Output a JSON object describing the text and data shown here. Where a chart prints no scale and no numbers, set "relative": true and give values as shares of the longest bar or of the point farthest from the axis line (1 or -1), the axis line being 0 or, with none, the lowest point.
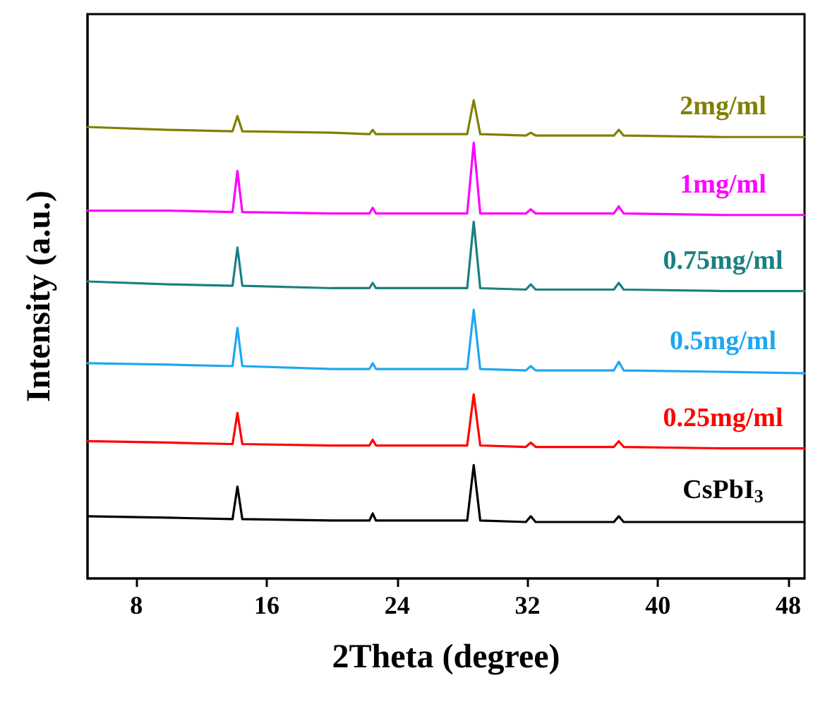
{
  "chart_data": {
    "type": "line",
    "relative": true,
    "xlabel": "2Theta (degree)",
    "ylabel": "Intensity (a.u.)",
    "xlim": [
      5,
      49
    ],
    "xticks": [
      8,
      16,
      24,
      32,
      40,
      48
    ],
    "grid": false,
    "legend": false,
    "marker": "none",
    "line_style": "solid",
    "x": [
      5,
      10,
      13.9,
      14.2,
      14.5,
      20,
      22.3,
      22.5,
      22.7,
      28.3,
      28.7,
      29.1,
      31.9,
      32.2,
      32.5,
      37.3,
      37.6,
      37.9,
      44,
      49
    ],
    "series": [
      {
        "name": "CsPbI$_{3}$",
        "color": "#000000",
        "values": [
          0.13,
          0.127,
          0.124,
          0.192,
          0.124,
          0.121,
          0.121,
          0.136,
          0.121,
          0.121,
          0.237,
          0.121,
          0.118,
          0.13,
          0.118,
          0.118,
          0.13,
          0.118,
          0.118,
          0.118
        ]
      },
      {
        "name": "0.25mg/ml",
        "color": "#ff0000",
        "values": [
          0.287,
          0.284,
          0.281,
          0.346,
          0.281,
          0.278,
          0.278,
          0.29,
          0.278,
          0.278,
          0.385,
          0.278,
          0.275,
          0.284,
          0.275,
          0.275,
          0.287,
          0.275,
          0.272,
          0.272
        ]
      },
      {
        "name": "0.5mg/ml",
        "color": "#1ea7f0",
        "values": [
          0.45,
          0.447,
          0.444,
          0.524,
          0.444,
          0.438,
          0.438,
          0.45,
          0.438,
          0.438,
          0.562,
          0.438,
          0.435,
          0.444,
          0.435,
          0.435,
          0.453,
          0.435,
          0.432,
          0.429
        ]
      },
      {
        "name": "0.75mg/ml",
        "color": "#1a8080",
        "values": [
          0.621,
          0.615,
          0.612,
          0.692,
          0.612,
          0.607,
          0.607,
          0.618,
          0.607,
          0.607,
          0.746,
          0.607,
          0.604,
          0.615,
          0.604,
          0.604,
          0.618,
          0.604,
          0.601,
          0.601
        ]
      },
      {
        "name": "1mg/ml",
        "color": "#ff00ff",
        "values": [
          0.769,
          0.769,
          0.766,
          0.852,
          0.766,
          0.763,
          0.763,
          0.775,
          0.763,
          0.763,
          0.911,
          0.763,
          0.763,
          0.772,
          0.763,
          0.763,
          0.778,
          0.763,
          0.76,
          0.76
        ]
      },
      {
        "name": "2mg/ml",
        "color": "#808000",
        "values": [
          0.944,
          0.938,
          0.935,
          0.967,
          0.935,
          0.932,
          0.929,
          0.938,
          0.929,
          0.929,
          1,
          0.929,
          0.926,
          0.932,
          0.926,
          0.926,
          0.938,
          0.926,
          0.923,
          0.923
        ]
      }
    ]
  }
}
